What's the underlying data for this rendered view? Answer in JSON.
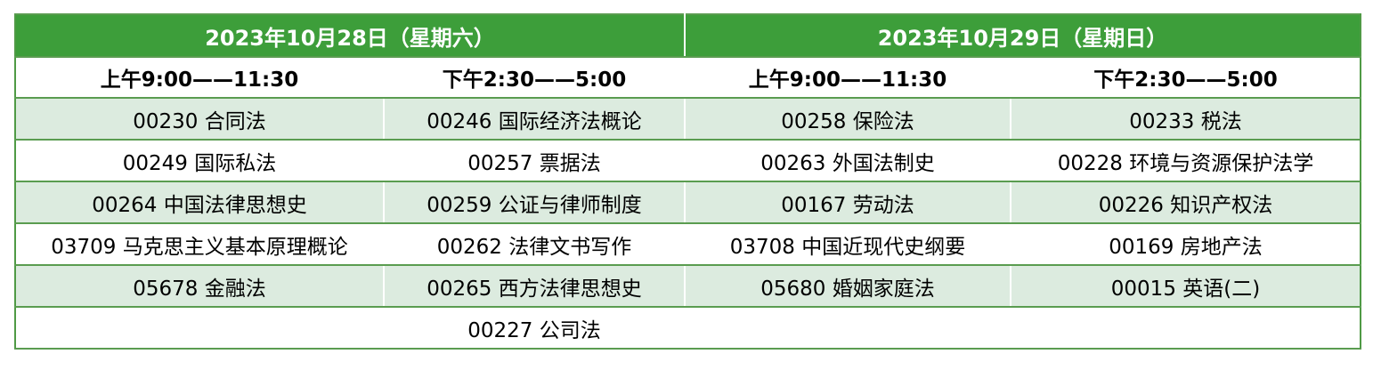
{
  "colors": {
    "header": "#3d9e3a",
    "row_shade": "#dcebdf",
    "border": "#5a9c50"
  },
  "days": [
    {
      "title": "2023年10月28日（星期六）",
      "slots": [
        "上午9:00——11:30",
        "下午2:30——5:00"
      ]
    },
    {
      "title": "2023年10月29日（星期日）",
      "slots": [
        "上午9:00——11:30",
        "下午2:30——5:00"
      ]
    }
  ],
  "rows": [
    [
      "00230 合同法",
      "00246 国际经济法概论",
      "00258 保险法",
      "00233 税法"
    ],
    [
      "00249 国际私法",
      "00257 票据法",
      "00263 外国法制史",
      "00228 环境与资源保护法学"
    ],
    [
      "00264 中国法律思想史",
      "00259 公证与律师制度",
      "00167 劳动法",
      "00226 知识产权法"
    ],
    [
      "03709 马克思主义基本原理概论",
      "00262 法律文书写作",
      "03708 中国近现代史纲要",
      "00169 房地产法"
    ],
    [
      "05678 金融法",
      "00265 西方法律思想史",
      "05680 婚姻家庭法",
      "00015 英语(二)"
    ],
    [
      "",
      "00227 公司法",
      "",
      ""
    ]
  ]
}
